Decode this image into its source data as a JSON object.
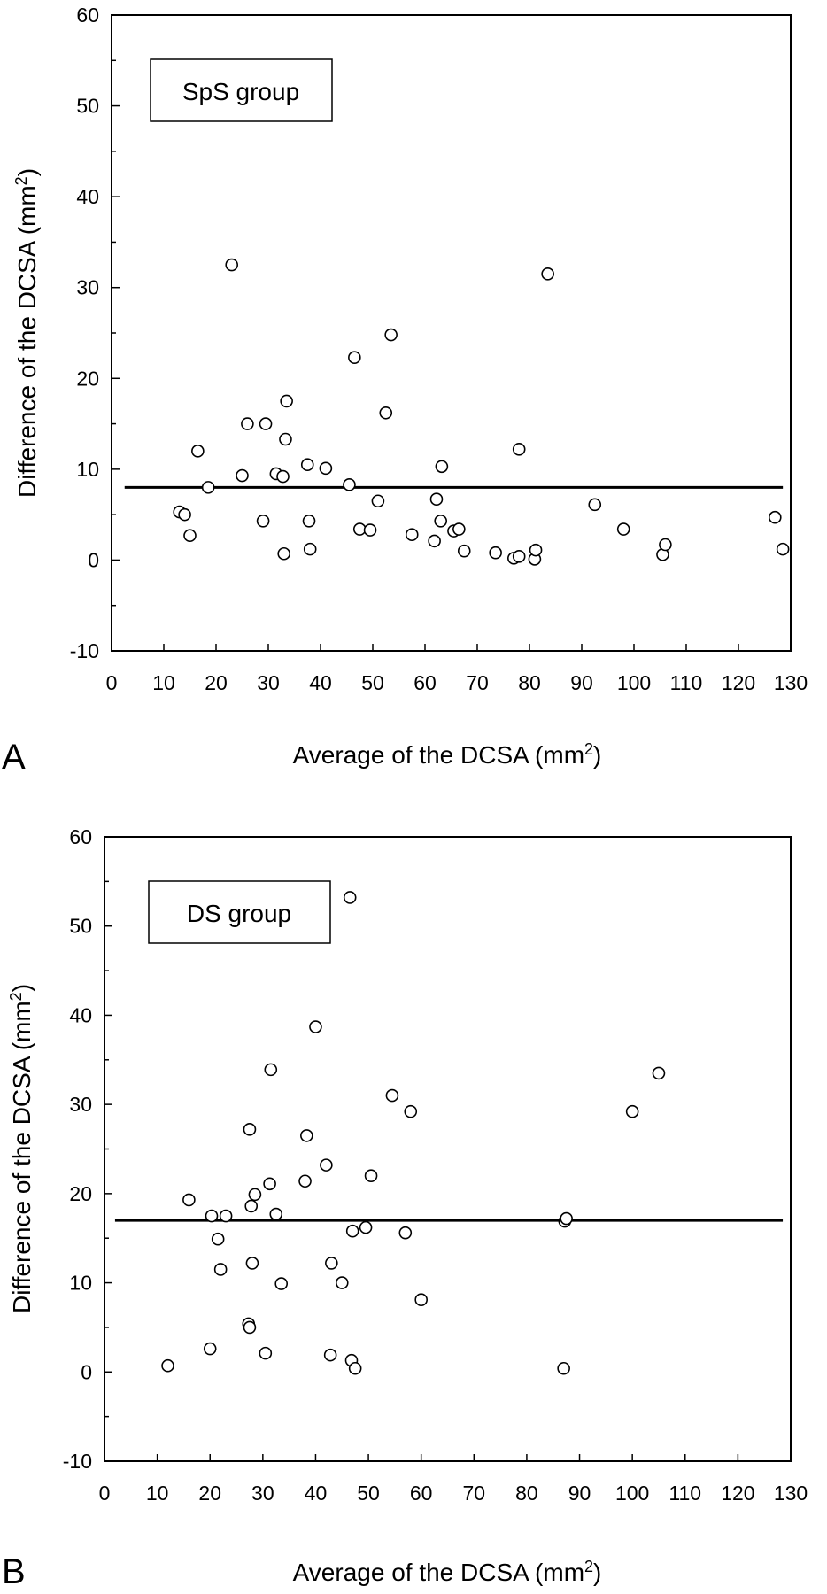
{
  "chart_data": [
    {
      "type": "scatter",
      "panel": "A",
      "group_label": "SpS group",
      "xlabel": "Average of the DCSA (mm²)",
      "ylabel": "Difference of the DCSA (mm²)",
      "xlim": [
        0,
        130
      ],
      "ylim": [
        -10,
        60
      ],
      "xticks": [
        0,
        10,
        20,
        30,
        40,
        50,
        60,
        70,
        80,
        90,
        100,
        110,
        120,
        130
      ],
      "yticks": [
        -10,
        0,
        10,
        20,
        30,
        40,
        50,
        60
      ],
      "grid": false,
      "mean_line": 8,
      "mean_line_x": [
        2.5,
        128.5
      ],
      "points": [
        [
          13,
          5.3
        ],
        [
          14,
          5
        ],
        [
          15,
          2.7
        ],
        [
          16.5,
          12
        ],
        [
          18.5,
          8
        ],
        [
          23,
          32.5
        ],
        [
          25,
          9.3
        ],
        [
          26,
          15
        ],
        [
          29,
          4.3
        ],
        [
          29.5,
          15
        ],
        [
          31.5,
          9.5
        ],
        [
          32.8,
          9.2
        ],
        [
          33,
          0.7
        ],
        [
          33.3,
          13.3
        ],
        [
          33.5,
          17.5
        ],
        [
          37.5,
          10.5
        ],
        [
          37.8,
          4.3
        ],
        [
          38,
          1.2
        ],
        [
          41,
          10.1
        ],
        [
          45.5,
          8.3
        ],
        [
          46.5,
          22.3
        ],
        [
          47.5,
          3.4
        ],
        [
          49.5,
          3.3
        ],
        [
          51,
          6.5
        ],
        [
          52.5,
          16.2
        ],
        [
          53.5,
          24.8
        ],
        [
          57.5,
          2.8
        ],
        [
          61.8,
          2.1
        ],
        [
          62.2,
          6.7
        ],
        [
          63,
          4.3
        ],
        [
          63.2,
          10.3
        ],
        [
          65.5,
          3.2
        ],
        [
          66.5,
          3.4
        ],
        [
          67.5,
          1
        ],
        [
          73.5,
          0.8
        ],
        [
          77,
          0.2
        ],
        [
          78,
          0.4
        ],
        [
          78,
          12.2
        ],
        [
          81,
          0.1
        ],
        [
          81.2,
          1.1
        ],
        [
          83.5,
          31.5
        ],
        [
          92.5,
          6.1
        ],
        [
          98,
          3.4
        ],
        [
          105.5,
          0.6
        ],
        [
          106,
          1.7
        ],
        [
          127,
          4.7
        ],
        [
          128.5,
          1.2
        ]
      ]
    },
    {
      "type": "scatter",
      "panel": "B",
      "group_label": "DS group",
      "xlabel": "Average of the DCSA (mm²)",
      "ylabel": "Difference of the DCSA (mm²)",
      "xlim": [
        0,
        130
      ],
      "ylim": [
        -10,
        60
      ],
      "xticks": [
        0,
        10,
        20,
        30,
        40,
        50,
        60,
        70,
        80,
        90,
        100,
        110,
        120,
        130
      ],
      "yticks": [
        -10,
        0,
        10,
        20,
        30,
        40,
        50,
        60
      ],
      "grid": false,
      "mean_line": 17,
      "mean_line_x": [
        2,
        128.5
      ],
      "points": [
        [
          12,
          0.7
        ],
        [
          16,
          19.3
        ],
        [
          20,
          2.6
        ],
        [
          20.3,
          17.5
        ],
        [
          21.5,
          14.9
        ],
        [
          22,
          11.5
        ],
        [
          23,
          17.5
        ],
        [
          27.3,
          5.4
        ],
        [
          27.5,
          5
        ],
        [
          27.5,
          27.2
        ],
        [
          27.8,
          18.6
        ],
        [
          28,
          12.2
        ],
        [
          28.5,
          19.9
        ],
        [
          30.5,
          2.1
        ],
        [
          31.3,
          21.1
        ],
        [
          31.5,
          33.9
        ],
        [
          32.5,
          17.7
        ],
        [
          33.5,
          9.9
        ],
        [
          38,
          21.4
        ],
        [
          38.3,
          26.5
        ],
        [
          40,
          38.7
        ],
        [
          42,
          23.2
        ],
        [
          42.8,
          1.9
        ],
        [
          43,
          12.2
        ],
        [
          45,
          10
        ],
        [
          46.5,
          53.2
        ],
        [
          46.8,
          1.3
        ],
        [
          47,
          15.8
        ],
        [
          47.5,
          0.4
        ],
        [
          49.5,
          16.2
        ],
        [
          50.5,
          22
        ],
        [
          54.5,
          31
        ],
        [
          57,
          15.6
        ],
        [
          58,
          29.2
        ],
        [
          60,
          8.1
        ],
        [
          87,
          0.4
        ],
        [
          87.2,
          16.9
        ],
        [
          87.5,
          17.2
        ],
        [
          100,
          29.2
        ],
        [
          105,
          33.5
        ]
      ]
    }
  ]
}
